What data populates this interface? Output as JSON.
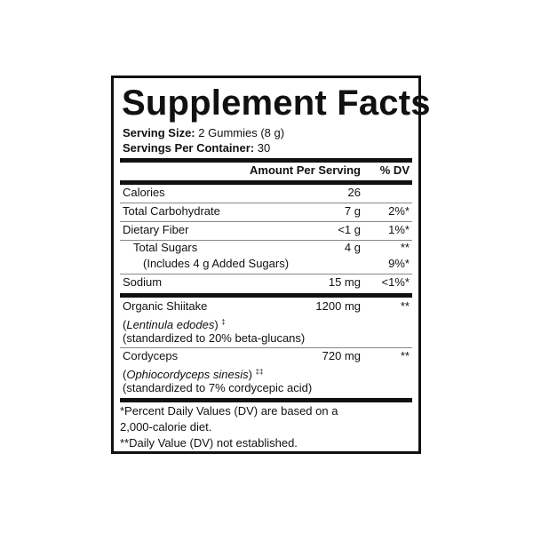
{
  "title": "Supplement Facts",
  "serving_size": {
    "label": "Serving Size:",
    "value": "2 Gummies (8 g)"
  },
  "servings_per_container": {
    "label": "Servings Per Container:",
    "value": "30"
  },
  "header": {
    "amount": "Amount Per Serving",
    "dv": "% DV"
  },
  "rows": [
    {
      "name": "Calories",
      "amount": "26",
      "dv": ""
    },
    {
      "name": "Total Carbohydrate",
      "amount": "7 g",
      "dv": "2%*"
    },
    {
      "name": "Dietary Fiber",
      "amount": "<1 g",
      "dv": "1%*"
    },
    {
      "name": "Total Sugars",
      "amount": "4 g",
      "dv": "**"
    },
    {
      "name": "(Includes 4 g Added Sugars)",
      "amount": "",
      "dv": "9%*"
    },
    {
      "name": "Sodium",
      "amount": "15 mg",
      "dv": "<1%*"
    }
  ],
  "ingredients": [
    {
      "name": "Organic Shiitake",
      "latin": "Lentinula edodes",
      "mark": "‡",
      "standard": "(standardized to 20% beta-glucans)",
      "amount": "1200 mg",
      "dv": "**"
    },
    {
      "name": "Cordyceps",
      "latin": "Ophiocordyceps sinesis",
      "mark": "‡‡",
      "standard": "(standardized to 7% cordycepic acid)",
      "amount": "720 mg",
      "dv": "**"
    }
  ],
  "footnotes": [
    "*Percent Daily Values (DV) are based on a",
    "2,000-calorie diet.",
    "**Daily Value (DV) not established."
  ]
}
